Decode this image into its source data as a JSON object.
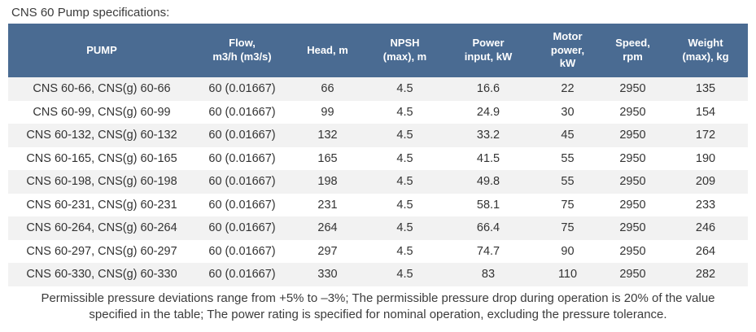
{
  "page": {
    "title": "CNS 60 Pump specifications:"
  },
  "table": {
    "columns": [
      {
        "label": "PUMP"
      },
      {
        "label": "Flow,\nm3/h (m3/s)"
      },
      {
        "label": "Head, m"
      },
      {
        "label": "NPSH\n(max), m"
      },
      {
        "label": "Power\ninput, kW"
      },
      {
        "label": "Motor\npower,\nkW"
      },
      {
        "label": "Speed,\nrpm"
      },
      {
        "label": "Weight\n(max), kg"
      }
    ],
    "rows": [
      [
        "CNS 60-66, CNS(g) 60-66",
        "60 (0.01667)",
        "66",
        "4.5",
        "16.6",
        "22",
        "2950",
        "135"
      ],
      [
        "CNS 60-99, CNS(g) 60-99",
        "60 (0.01667)",
        "99",
        "4.5",
        "24.9",
        "30",
        "2950",
        "154"
      ],
      [
        "CNS 60-132, CNS(g) 60-132",
        "60 (0.01667)",
        "132",
        "4.5",
        "33.2",
        "45",
        "2950",
        "172"
      ],
      [
        "CNS 60-165, CNS(g) 60-165",
        "60 (0.01667)",
        "165",
        "4.5",
        "41.5",
        "55",
        "2950",
        "190"
      ],
      [
        "CNS 60-198, CNS(g) 60-198",
        "60 (0.01667)",
        "198",
        "4.5",
        "49.8",
        "55",
        "2950",
        "209"
      ],
      [
        "CNS 60-231, CNS(g) 60-231",
        "60 (0.01667)",
        "231",
        "4.5",
        "58.1",
        "75",
        "2950",
        "233"
      ],
      [
        "CNS 60-264, CNS(g) 60-264",
        "60 (0.01667)",
        "264",
        "4.5",
        "66.4",
        "75",
        "2950",
        "246"
      ],
      [
        "CNS 60-297, CNS(g) 60-297",
        "60 (0.01667)",
        "297",
        "4.5",
        "74.7",
        "90",
        "2950",
        "264"
      ],
      [
        "CNS 60-330, CNS(g) 60-330",
        "60 (0.01667)",
        "330",
        "4.5",
        "83",
        "110",
        "2950",
        "282"
      ]
    ]
  },
  "footnote": {
    "text": "Permissible pressure deviations range from +5% to –3%; The permissible pressure drop during operation is 20% of the value specified in the table; The power rating is specified for nominal operation, excluding the pressure tolerance."
  },
  "colors": {
    "header_bg": "#4a6b92",
    "header_text": "#ffffff",
    "row_alt_bg": "#f2f2f2",
    "body_text": "#333333"
  }
}
